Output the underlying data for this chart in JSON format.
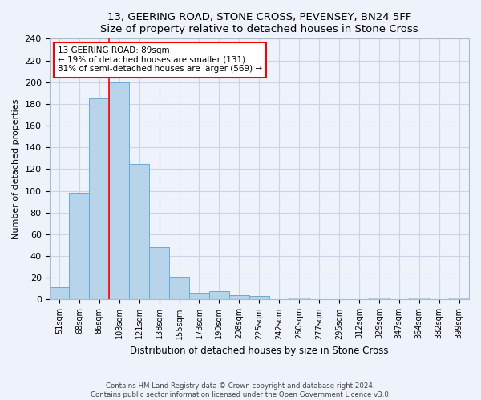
{
  "title": "13, GEERING ROAD, STONE CROSS, PEVENSEY, BN24 5FF",
  "subtitle": "Size of property relative to detached houses in Stone Cross",
  "xlabel": "Distribution of detached houses by size in Stone Cross",
  "ylabel": "Number of detached properties",
  "categories": [
    "51sqm",
    "68sqm",
    "86sqm",
    "103sqm",
    "121sqm",
    "138sqm",
    "155sqm",
    "173sqm",
    "190sqm",
    "208sqm",
    "225sqm",
    "242sqm",
    "260sqm",
    "277sqm",
    "295sqm",
    "312sqm",
    "329sqm",
    "347sqm",
    "364sqm",
    "382sqm",
    "399sqm"
  ],
  "values": [
    11,
    98,
    185,
    200,
    125,
    48,
    21,
    6,
    8,
    4,
    3,
    0,
    2,
    0,
    0,
    0,
    2,
    0,
    2,
    0,
    2
  ],
  "bar_color": "#b8d4ea",
  "bar_edge_color": "#6aaad4",
  "background_color": "#eef2fb",
  "grid_color": "#ccd5e8",
  "annotation_text": "13 GEERING ROAD: 89sqm\n← 19% of detached houses are smaller (131)\n81% of semi-detached houses are larger (569) →",
  "annotation_box_color": "white",
  "annotation_box_edge": "red",
  "red_line_x": 2.5,
  "ylim": [
    0,
    240
  ],
  "yticks": [
    0,
    20,
    40,
    60,
    80,
    100,
    120,
    140,
    160,
    180,
    200,
    220,
    240
  ],
  "footer_line1": "Contains HM Land Registry data © Crown copyright and database right 2024.",
  "footer_line2": "Contains public sector information licensed under the Open Government Licence v3.0."
}
